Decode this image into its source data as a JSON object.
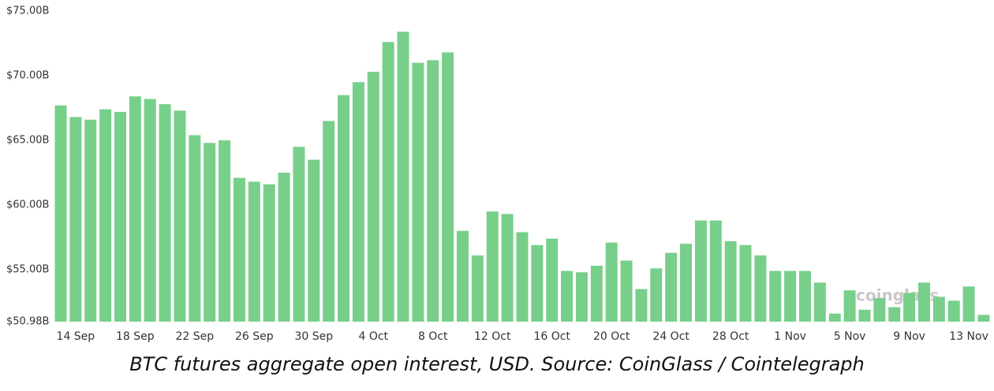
{
  "chart_data": {
    "type": "bar",
    "caption": "BTC futures aggregate open interest, USD. Source: CoinGlass / Cointelegraph",
    "watermark": "coinglass",
    "color": "#77cf8a",
    "categories": [
      null,
      "14 Sep",
      null,
      null,
      null,
      "18 Sep",
      null,
      null,
      null,
      "22 Sep",
      null,
      null,
      null,
      "26 Sep",
      null,
      null,
      null,
      "30 Sep",
      null,
      null,
      null,
      "4 Oct",
      null,
      null,
      null,
      "8 Oct",
      null,
      null,
      null,
      "12 Oct",
      null,
      null,
      null,
      "16 Oct",
      null,
      null,
      null,
      "20 Oct",
      null,
      null,
      null,
      "24 Oct",
      null,
      null,
      null,
      "28 Oct",
      null,
      null,
      null,
      "1 Nov",
      null,
      null,
      null,
      "5 Nov",
      null,
      null,
      null,
      "9 Nov",
      null,
      null,
      null,
      "13 Nov",
      null
    ],
    "values": [
      67.7,
      66.8,
      66.6,
      67.4,
      67.2,
      68.4,
      68.2,
      67.8,
      67.3,
      65.4,
      64.8,
      65.0,
      62.1,
      61.8,
      61.6,
      62.5,
      64.5,
      63.5,
      66.5,
      68.5,
      69.5,
      70.3,
      72.6,
      73.4,
      71.0,
      71.2,
      71.8,
      58.0,
      56.1,
      59.5,
      59.3,
      57.9,
      56.9,
      57.4,
      54.9,
      54.8,
      55.3,
      57.1,
      55.7,
      53.5,
      55.1,
      56.3,
      57.0,
      58.8,
      58.8,
      57.2,
      56.9,
      56.1,
      54.9,
      54.9,
      54.9,
      54.0,
      51.6,
      53.4,
      51.9,
      52.8,
      52.1,
      53.2,
      54.0,
      52.9,
      52.6,
      53.7,
      51.5
    ],
    "ylim": [
      50.98,
      75
    ],
    "yticks": [
      {
        "value": 50.98,
        "label": "$50.98B"
      },
      {
        "value": 55,
        "label": "$55.00B"
      },
      {
        "value": 60,
        "label": "$60.00B"
      },
      {
        "value": 65,
        "label": "$65.00B"
      },
      {
        "value": 70,
        "label": "$70.00B"
      },
      {
        "value": 75,
        "label": "$75.00B"
      }
    ]
  }
}
